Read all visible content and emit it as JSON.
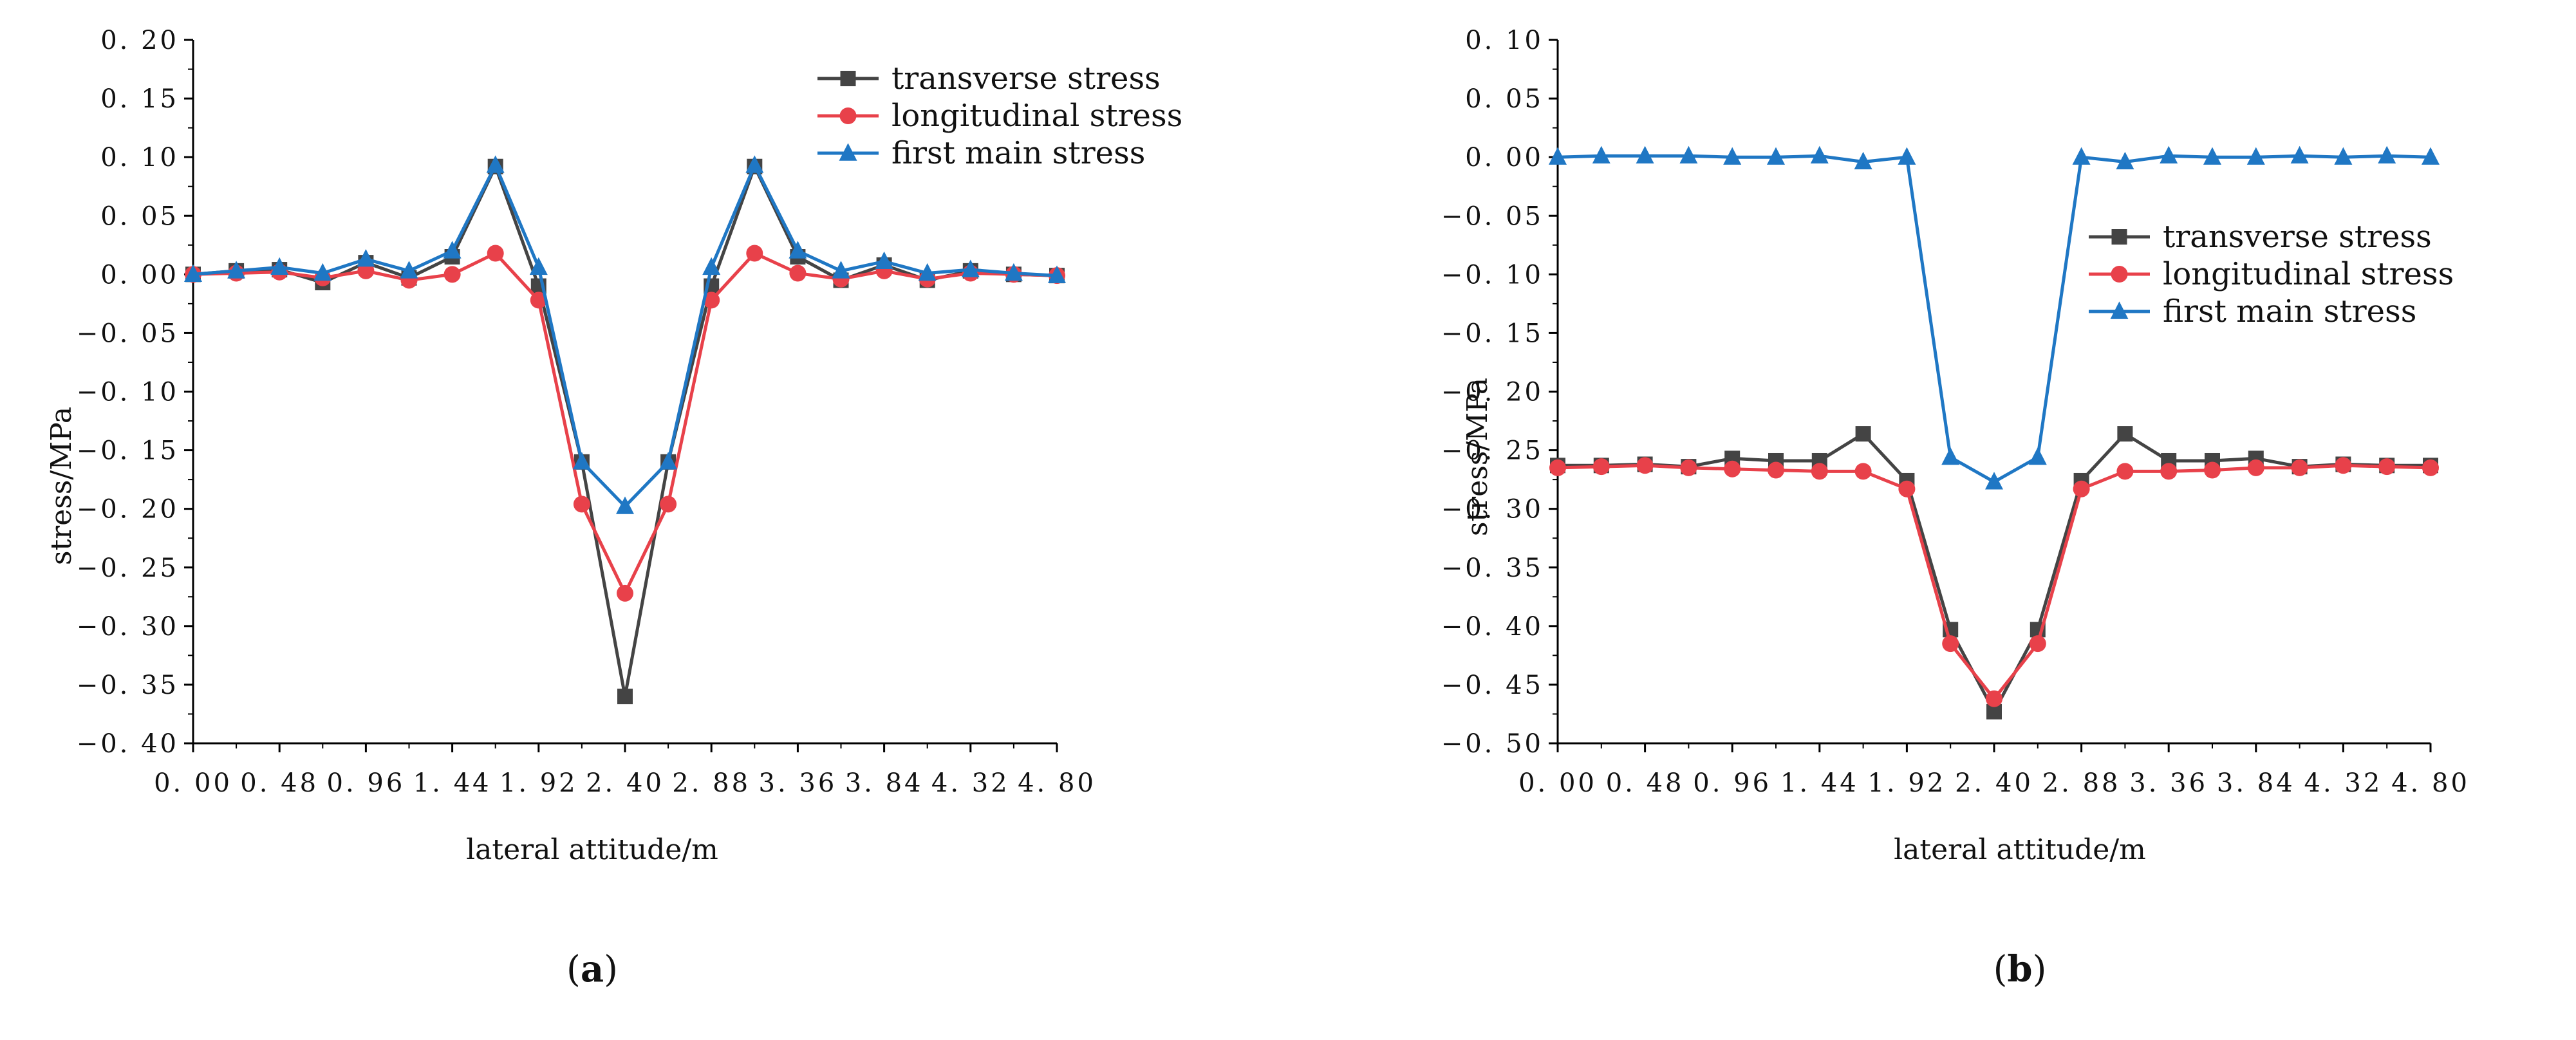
{
  "colors": {
    "transverse": "#444444",
    "longitudinal": "#e8414a",
    "first_main": "#1f77c4",
    "axis": "#000000"
  },
  "chart_data": [
    {
      "type": "line",
      "panel_label": "a",
      "xlabel": "lateral attitude/m",
      "ylabel": "stress/MPa",
      "xlim": [
        0,
        4.8
      ],
      "ylim": [
        -0.4,
        0.2
      ],
      "x_ticks": [
        0,
        0.48,
        0.96,
        1.44,
        1.92,
        2.4,
        2.88,
        3.36,
        3.84,
        4.32,
        4.8
      ],
      "x_tick_labels": [
        "0. 00",
        "0. 48",
        "0. 96",
        "1. 44",
        "1. 92",
        "2. 40",
        "2. 88",
        "3. 36",
        "3. 84",
        "4. 32",
        "4. 80"
      ],
      "y_ticks": [
        0.2,
        0.15,
        0.1,
        0.05,
        0.0,
        -0.05,
        -0.1,
        -0.15,
        -0.2,
        -0.25,
        -0.3,
        -0.35,
        -0.4
      ],
      "y_tick_labels": [
        "0. 20",
        "0. 15",
        "0. 10",
        "0. 05",
        "0. 00",
        "−0. 05",
        "−0. 10",
        "−0. 15",
        "−0. 20",
        "−0. 25",
        "−0. 30",
        "−0. 35",
        "−0. 40"
      ],
      "legend_position": "top-right",
      "x": [
        0,
        0.24,
        0.48,
        0.72,
        0.96,
        1.2,
        1.44,
        1.68,
        1.92,
        2.16,
        2.4,
        2.64,
        2.88,
        3.12,
        3.36,
        3.6,
        3.84,
        4.08,
        4.32,
        4.56,
        4.8
      ],
      "series": [
        {
          "name": "transverse stress",
          "key": "transverse",
          "marker": "square",
          "values": [
            0.0,
            0.003,
            0.004,
            -0.007,
            0.01,
            -0.003,
            0.015,
            0.092,
            -0.01,
            -0.16,
            -0.36,
            -0.16,
            -0.01,
            0.092,
            0.015,
            -0.005,
            0.008,
            -0.005,
            0.003,
            0.0,
            -0.001
          ]
        },
        {
          "name": "longitudinal stress",
          "key": "longitudinal",
          "marker": "circle",
          "values": [
            0.0,
            0.001,
            0.002,
            -0.003,
            0.003,
            -0.005,
            0.0,
            0.018,
            -0.022,
            -0.196,
            -0.272,
            -0.196,
            -0.022,
            0.018,
            0.001,
            -0.004,
            0.003,
            -0.004,
            0.001,
            0.0,
            -0.001
          ]
        },
        {
          "name": "first main stress",
          "key": "first_main",
          "marker": "triangle",
          "values": [
            0.0,
            0.003,
            0.006,
            0.001,
            0.013,
            0.003,
            0.02,
            0.093,
            0.006,
            -0.16,
            -0.198,
            -0.16,
            0.006,
            0.093,
            0.02,
            0.003,
            0.011,
            0.001,
            0.004,
            0.001,
            -0.001
          ]
        }
      ]
    },
    {
      "type": "line",
      "panel_label": "b",
      "xlabel": "lateral attitude/m",
      "ylabel": "stress/MPa",
      "xlim": [
        0,
        4.8
      ],
      "ylim": [
        -0.5,
        0.1
      ],
      "x_ticks": [
        0,
        0.48,
        0.96,
        1.44,
        1.92,
        2.4,
        2.88,
        3.36,
        3.84,
        4.32,
        4.8
      ],
      "x_tick_labels": [
        "0. 00",
        "0. 48",
        "0. 96",
        "1. 44",
        "1. 92",
        "2. 40",
        "2. 88",
        "3. 36",
        "3. 84",
        "4. 32",
        "4. 80"
      ],
      "y_ticks": [
        0.1,
        0.05,
        0.0,
        -0.05,
        -0.1,
        -0.15,
        -0.2,
        -0.25,
        -0.3,
        -0.35,
        -0.4,
        -0.45,
        -0.5
      ],
      "y_tick_labels": [
        "0. 10",
        "0. 05",
        "0. 00",
        "−0. 05",
        "−0. 10",
        "−0. 15",
        "−0. 20",
        "−0. 25",
        "−0. 30",
        "−0. 35",
        "−0. 40",
        "−0. 45",
        "−0. 50"
      ],
      "legend_position": "right",
      "x": [
        0,
        0.24,
        0.48,
        0.72,
        0.96,
        1.2,
        1.44,
        1.68,
        1.92,
        2.16,
        2.4,
        2.64,
        2.88,
        3.12,
        3.36,
        3.6,
        3.84,
        4.08,
        4.32,
        4.56,
        4.8
      ],
      "series": [
        {
          "name": "transverse stress",
          "key": "transverse",
          "marker": "square",
          "values": [
            -0.263,
            -0.263,
            -0.262,
            -0.264,
            -0.257,
            -0.259,
            -0.259,
            -0.236,
            -0.276,
            -0.403,
            -0.473,
            -0.403,
            -0.276,
            -0.236,
            -0.259,
            -0.259,
            -0.257,
            -0.264,
            -0.262,
            -0.263,
            -0.263
          ]
        },
        {
          "name": "longitudinal stress",
          "key": "longitudinal",
          "marker": "circle",
          "values": [
            -0.265,
            -0.264,
            -0.263,
            -0.265,
            -0.266,
            -0.267,
            -0.268,
            -0.268,
            -0.283,
            -0.415,
            -0.462,
            -0.415,
            -0.283,
            -0.268,
            -0.268,
            -0.267,
            -0.265,
            -0.265,
            -0.263,
            -0.264,
            -0.265
          ]
        },
        {
          "name": "first main stress",
          "key": "first_main",
          "marker": "triangle",
          "values": [
            0.0,
            0.001,
            0.001,
            0.001,
            0.0,
            0.0,
            0.001,
            -0.004,
            0.0,
            -0.256,
            -0.277,
            -0.256,
            0.0,
            -0.004,
            0.001,
            0.0,
            0.0,
            0.001,
            0.0,
            0.001,
            0.0
          ]
        }
      ]
    }
  ]
}
